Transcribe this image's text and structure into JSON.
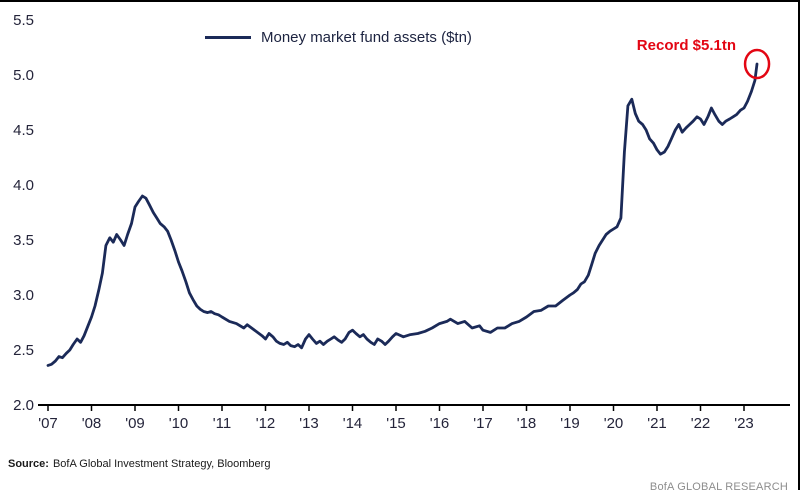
{
  "chart": {
    "legend_label": "Money market fund assets ($tn)",
    "annotation_label": "Record $5.1tn",
    "source_label": "Source:",
    "source_text": "BofA Global Investment Strategy, Bloomberg",
    "branding": "BofA GLOBAL RESEARCH",
    "colors": {
      "line": "#1b2a58",
      "annotation": "#e30613",
      "axis": "#000000",
      "tick_label": "#24243a"
    }
  },
  "chart_data": {
    "type": "line",
    "title": "",
    "xlabel": "",
    "ylabel": "",
    "legend_position": "top-center",
    "grid": false,
    "ylim": [
      2.0,
      5.5
    ],
    "yticks": [
      5.5,
      5.0,
      4.5,
      4.0,
      3.5,
      3.0,
      2.5,
      2.0
    ],
    "xtick_years": [
      2007,
      2008,
      2009,
      2010,
      2011,
      2012,
      2013,
      2014,
      2015,
      2016,
      2017,
      2018,
      2019,
      2020,
      2021,
      2022,
      2023
    ],
    "xtick_labels": [
      "'07",
      "'08",
      "'09",
      "'10",
      "'11",
      "'12",
      "'13",
      "'14",
      "'15",
      "'16",
      "'17",
      "'18",
      "'19",
      "'20",
      "'21",
      "'22",
      "'23"
    ],
    "annotation": {
      "text": "Record $5.1tn",
      "x": 2023.3,
      "y": 5.1
    },
    "series": [
      {
        "name": "Money market fund assets ($tn)",
        "points": [
          [
            2007.0,
            2.36
          ],
          [
            2007.08,
            2.37
          ],
          [
            2007.17,
            2.4
          ],
          [
            2007.25,
            2.44
          ],
          [
            2007.33,
            2.43
          ],
          [
            2007.42,
            2.47
          ],
          [
            2007.5,
            2.5
          ],
          [
            2007.58,
            2.55
          ],
          [
            2007.67,
            2.6
          ],
          [
            2007.75,
            2.57
          ],
          [
            2007.83,
            2.63
          ],
          [
            2007.92,
            2.72
          ],
          [
            2008.0,
            2.8
          ],
          [
            2008.08,
            2.9
          ],
          [
            2008.17,
            3.05
          ],
          [
            2008.25,
            3.2
          ],
          [
            2008.33,
            3.45
          ],
          [
            2008.42,
            3.52
          ],
          [
            2008.5,
            3.48
          ],
          [
            2008.58,
            3.55
          ],
          [
            2008.67,
            3.5
          ],
          [
            2008.75,
            3.45
          ],
          [
            2008.83,
            3.55
          ],
          [
            2008.92,
            3.65
          ],
          [
            2009.0,
            3.8
          ],
          [
            2009.08,
            3.85
          ],
          [
            2009.17,
            3.9
          ],
          [
            2009.25,
            3.88
          ],
          [
            2009.33,
            3.82
          ],
          [
            2009.42,
            3.75
          ],
          [
            2009.5,
            3.7
          ],
          [
            2009.58,
            3.65
          ],
          [
            2009.67,
            3.62
          ],
          [
            2009.75,
            3.58
          ],
          [
            2009.83,
            3.5
          ],
          [
            2009.92,
            3.4
          ],
          [
            2010.0,
            3.3
          ],
          [
            2010.08,
            3.22
          ],
          [
            2010.17,
            3.12
          ],
          [
            2010.25,
            3.02
          ],
          [
            2010.33,
            2.96
          ],
          [
            2010.42,
            2.9
          ],
          [
            2010.5,
            2.87
          ],
          [
            2010.58,
            2.85
          ],
          [
            2010.67,
            2.84
          ],
          [
            2010.75,
            2.85
          ],
          [
            2010.83,
            2.83
          ],
          [
            2010.92,
            2.82
          ],
          [
            2011.0,
            2.8
          ],
          [
            2011.17,
            2.76
          ],
          [
            2011.33,
            2.74
          ],
          [
            2011.5,
            2.7
          ],
          [
            2011.58,
            2.73
          ],
          [
            2011.75,
            2.68
          ],
          [
            2011.92,
            2.63
          ],
          [
            2012.0,
            2.6
          ],
          [
            2012.08,
            2.65
          ],
          [
            2012.17,
            2.62
          ],
          [
            2012.25,
            2.58
          ],
          [
            2012.33,
            2.56
          ],
          [
            2012.42,
            2.55
          ],
          [
            2012.5,
            2.57
          ],
          [
            2012.58,
            2.54
          ],
          [
            2012.67,
            2.53
          ],
          [
            2012.75,
            2.55
          ],
          [
            2012.83,
            2.52
          ],
          [
            2012.92,
            2.6
          ],
          [
            2013.0,
            2.64
          ],
          [
            2013.08,
            2.6
          ],
          [
            2013.17,
            2.56
          ],
          [
            2013.25,
            2.58
          ],
          [
            2013.33,
            2.55
          ],
          [
            2013.42,
            2.58
          ],
          [
            2013.5,
            2.6
          ],
          [
            2013.58,
            2.62
          ],
          [
            2013.67,
            2.59
          ],
          [
            2013.75,
            2.57
          ],
          [
            2013.83,
            2.6
          ],
          [
            2013.92,
            2.66
          ],
          [
            2014.0,
            2.68
          ],
          [
            2014.08,
            2.65
          ],
          [
            2014.17,
            2.62
          ],
          [
            2014.25,
            2.64
          ],
          [
            2014.33,
            2.6
          ],
          [
            2014.42,
            2.57
          ],
          [
            2014.5,
            2.55
          ],
          [
            2014.58,
            2.6
          ],
          [
            2014.67,
            2.58
          ],
          [
            2014.75,
            2.55
          ],
          [
            2014.83,
            2.58
          ],
          [
            2014.92,
            2.62
          ],
          [
            2015.0,
            2.65
          ],
          [
            2015.17,
            2.62
          ],
          [
            2015.33,
            2.64
          ],
          [
            2015.5,
            2.65
          ],
          [
            2015.67,
            2.67
          ],
          [
            2015.83,
            2.7
          ],
          [
            2016.0,
            2.74
          ],
          [
            2016.17,
            2.76
          ],
          [
            2016.25,
            2.78
          ],
          [
            2016.42,
            2.74
          ],
          [
            2016.58,
            2.76
          ],
          [
            2016.75,
            2.7
          ],
          [
            2016.92,
            2.72
          ],
          [
            2017.0,
            2.68
          ],
          [
            2017.17,
            2.66
          ],
          [
            2017.33,
            2.7
          ],
          [
            2017.5,
            2.7
          ],
          [
            2017.67,
            2.74
          ],
          [
            2017.83,
            2.76
          ],
          [
            2018.0,
            2.8
          ],
          [
            2018.17,
            2.85
          ],
          [
            2018.33,
            2.86
          ],
          [
            2018.5,
            2.9
          ],
          [
            2018.67,
            2.9
          ],
          [
            2018.83,
            2.95
          ],
          [
            2019.0,
            3.0
          ],
          [
            2019.08,
            3.02
          ],
          [
            2019.17,
            3.05
          ],
          [
            2019.25,
            3.1
          ],
          [
            2019.33,
            3.12
          ],
          [
            2019.42,
            3.18
          ],
          [
            2019.5,
            3.28
          ],
          [
            2019.58,
            3.38
          ],
          [
            2019.67,
            3.45
          ],
          [
            2019.75,
            3.5
          ],
          [
            2019.83,
            3.55
          ],
          [
            2019.92,
            3.58
          ],
          [
            2020.0,
            3.6
          ],
          [
            2020.08,
            3.62
          ],
          [
            2020.17,
            3.7
          ],
          [
            2020.25,
            4.3
          ],
          [
            2020.33,
            4.72
          ],
          [
            2020.42,
            4.78
          ],
          [
            2020.5,
            4.65
          ],
          [
            2020.58,
            4.58
          ],
          [
            2020.67,
            4.55
          ],
          [
            2020.75,
            4.5
          ],
          [
            2020.83,
            4.42
          ],
          [
            2020.92,
            4.38
          ],
          [
            2021.0,
            4.32
          ],
          [
            2021.08,
            4.28
          ],
          [
            2021.17,
            4.3
          ],
          [
            2021.25,
            4.35
          ],
          [
            2021.33,
            4.42
          ],
          [
            2021.42,
            4.5
          ],
          [
            2021.5,
            4.55
          ],
          [
            2021.58,
            4.48
          ],
          [
            2021.67,
            4.52
          ],
          [
            2021.75,
            4.55
          ],
          [
            2021.83,
            4.58
          ],
          [
            2021.92,
            4.62
          ],
          [
            2022.0,
            4.6
          ],
          [
            2022.08,
            4.55
          ],
          [
            2022.17,
            4.62
          ],
          [
            2022.25,
            4.7
          ],
          [
            2022.33,
            4.64
          ],
          [
            2022.42,
            4.58
          ],
          [
            2022.5,
            4.55
          ],
          [
            2022.58,
            4.58
          ],
          [
            2022.67,
            4.6
          ],
          [
            2022.75,
            4.62
          ],
          [
            2022.83,
            4.64
          ],
          [
            2022.92,
            4.68
          ],
          [
            2023.0,
            4.7
          ],
          [
            2023.08,
            4.76
          ],
          [
            2023.17,
            4.85
          ],
          [
            2023.25,
            4.95
          ],
          [
            2023.3,
            5.1
          ]
        ]
      }
    ]
  }
}
